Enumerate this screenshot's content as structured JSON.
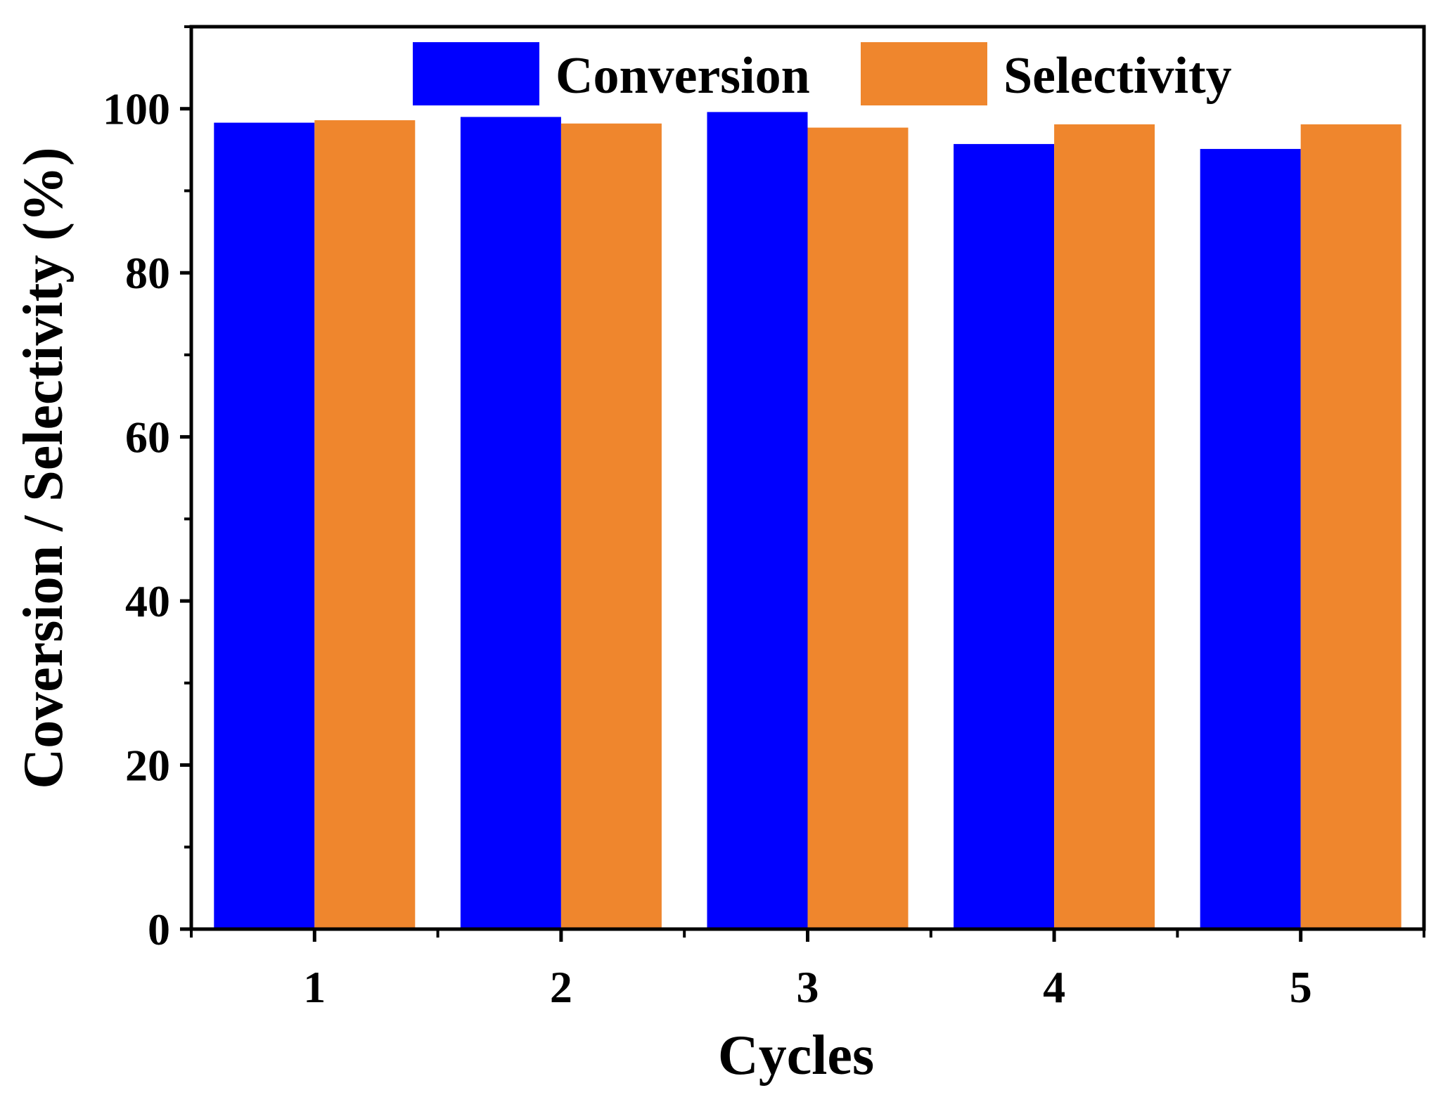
{
  "chart_data": {
    "type": "bar",
    "title": "",
    "xlabel": "Cycles",
    "ylabel": "Coversion / Selectivity (%)",
    "categories": [
      "1",
      "2",
      "3",
      "4",
      "5"
    ],
    "series": [
      {
        "name": "Conversion",
        "color": "#0000FF",
        "values": [
          98.3,
          99.0,
          99.6,
          95.7,
          95.1
        ]
      },
      {
        "name": "Selectivity",
        "color": "#EF862D",
        "values": [
          98.6,
          98.2,
          97.7,
          98.1,
          98.1
        ]
      }
    ],
    "ylim": [
      0,
      110
    ],
    "yticks": [
      0,
      20,
      40,
      60,
      80,
      100
    ],
    "yticks_minor": [
      10,
      30,
      50,
      70,
      90,
      110
    ],
    "ytick_labels": [
      "0",
      "20",
      "40",
      "60",
      "80",
      "100"
    ],
    "xtick_labels": [
      "1",
      "2",
      "3",
      "4",
      "5"
    ],
    "grid": false,
    "legend": {
      "placement": "top-center",
      "labels": [
        "Conversion",
        "Selectivity"
      ]
    }
  }
}
